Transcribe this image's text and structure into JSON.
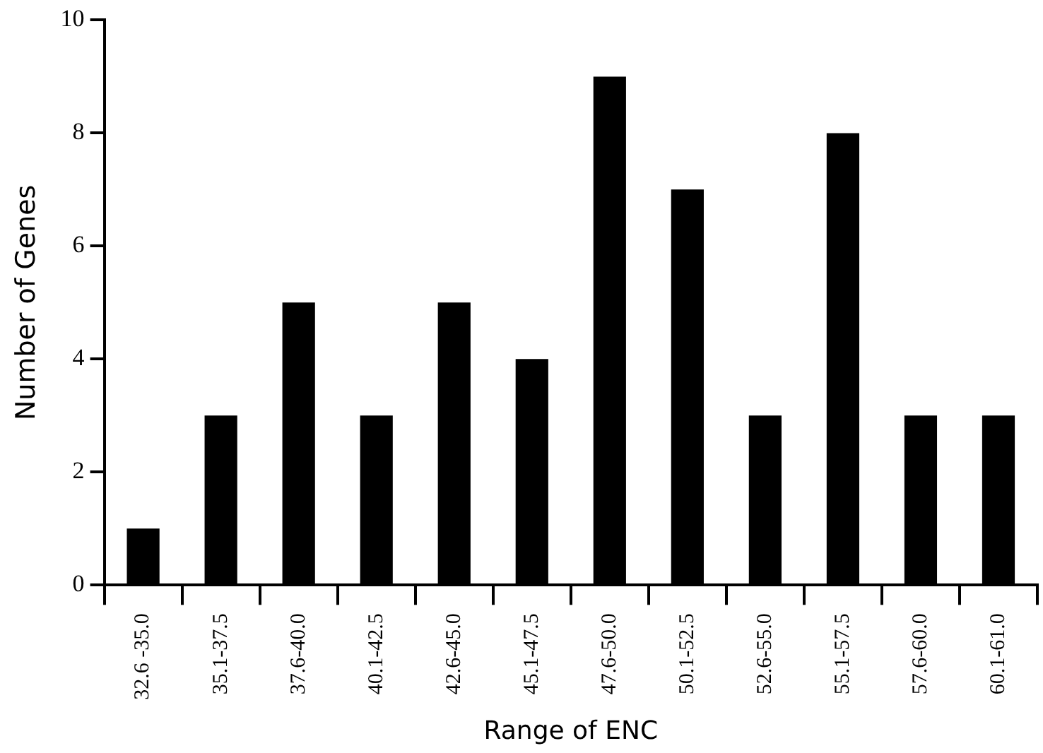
{
  "chart_data": {
    "type": "bar",
    "xlabel": "Range of ENC",
    "ylabel": "Number of Genes",
    "categories": [
      "32.6 -35.0",
      "35.1-37.5",
      "37.6-40.0",
      "40.1-42.5",
      "42.6-45.0",
      "45.1-47.5",
      "47.6-50.0",
      "50.1-52.5",
      "52.6-55.0",
      "55.1-57.5",
      "57.6-60.0",
      "60.1-61.0"
    ],
    "values": [
      1,
      3,
      5,
      3,
      5,
      4,
      9,
      7,
      3,
      8,
      3,
      3
    ],
    "color": "#000000",
    "ylim": [
      0,
      10
    ],
    "yticks": [
      0,
      2,
      4,
      6,
      8,
      10
    ],
    "grid": false,
    "legend": false
  }
}
